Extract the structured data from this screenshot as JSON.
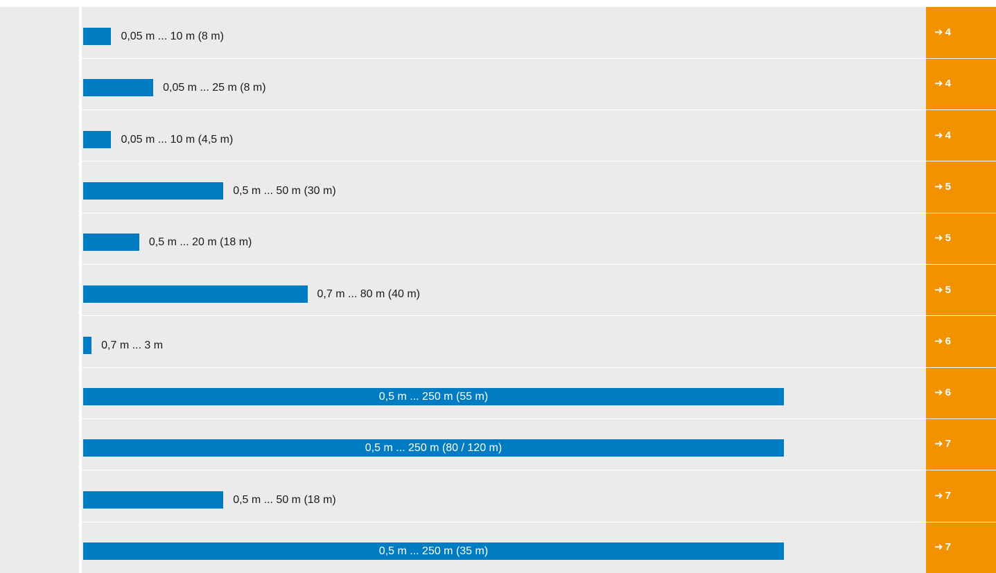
{
  "chart_data": {
    "type": "bar",
    "orientation": "horizontal",
    "scale_note": "bar length proportional to maximum range",
    "xlim": [
      0,
      250
    ],
    "colors": {
      "bar": "#007cc2",
      "background": "#ebebeb",
      "reference_column": "#f39200"
    },
    "rows": [
      {
        "label": "0,05 m ... 10 m (8 m)",
        "min": 0.05,
        "max": 10,
        "ref": "4"
      },
      {
        "label": "0,05 m ... 25 m (8 m)",
        "min": 0.05,
        "max": 25,
        "ref": "4"
      },
      {
        "label": "0,05 m ... 10 m (4,5 m)",
        "min": 0.05,
        "max": 10,
        "ref": "4"
      },
      {
        "label": "0,5 m ... 50 m (30 m)",
        "min": 0.5,
        "max": 50,
        "ref": "5"
      },
      {
        "label": "0,5 m ... 20 m (18 m)",
        "min": 0.5,
        "max": 20,
        "ref": "5"
      },
      {
        "label": "0,7 m ... 80 m (40 m)",
        "min": 0.7,
        "max": 80,
        "ref": "5"
      },
      {
        "label": "0,7 m ... 3 m",
        "min": 0.7,
        "max": 3,
        "ref": "6"
      },
      {
        "label": "0,5 m ... 250 m (55 m)",
        "min": 0.5,
        "max": 250,
        "ref": "6"
      },
      {
        "label": "0,5 m ... 250 m (80 / 120 m)",
        "min": 0.5,
        "max": 250,
        "ref": "7"
      },
      {
        "label": "0,5 m ... 50 m (18 m)",
        "min": 0.5,
        "max": 50,
        "ref": "7"
      },
      {
        "label": "0,5 m ... 250 m (35 m)",
        "min": 0.5,
        "max": 250,
        "ref": "7"
      }
    ],
    "arrow_glyph": "➜"
  }
}
